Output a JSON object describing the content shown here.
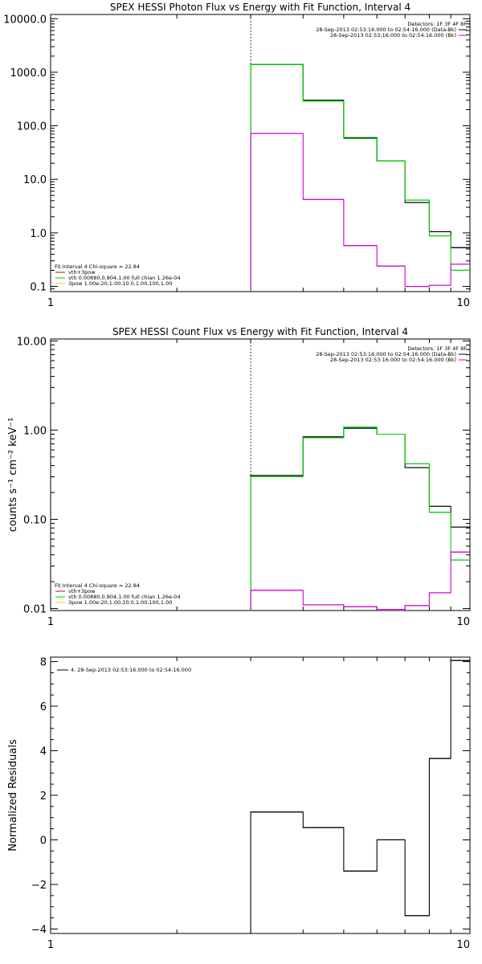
{
  "chart_data": [
    {
      "type": "line",
      "title": "SPEX HESSI Photon Flux vs Energy with Fit Function, Interval 4",
      "xlabel": "",
      "ylabel": "",
      "xscale": "log",
      "yscale": "log",
      "xlim": [
        1,
        10
      ],
      "ylim": [
        0.08,
        12000
      ],
      "x_ticks": [
        {
          "v": 1,
          "label": "1"
        },
        {
          "v": 10,
          "label": "10"
        }
      ],
      "y_ticks": [
        {
          "v": 0.1,
          "label": "0.1"
        },
        {
          "v": 1,
          "label": "1.0"
        },
        {
          "v": 10,
          "label": "10.0"
        },
        {
          "v": 100,
          "label": "100.0"
        },
        {
          "v": 1000,
          "label": "1000.0"
        },
        {
          "v": 10000,
          "label": "10000.0"
        }
      ],
      "vline": 3,
      "bin_edges": [
        3,
        4,
        5,
        6,
        7,
        8,
        9,
        10
      ],
      "series": [
        {
          "color": "#000000",
          "values": [
            1400,
            300,
            60,
            22,
            3.7,
            1.05,
            0.53
          ]
        },
        {
          "color": "#00cc00",
          "values": [
            1400,
            290,
            58,
            22,
            4.1,
            0.88,
            0.2
          ]
        },
        {
          "color": "#cc00cc",
          "values": [
            72,
            4.2,
            0.58,
            0.24,
            0.1,
            0.105,
            0.26
          ]
        }
      ],
      "legend_top_right": [
        {
          "text": "Detectors: 1F 3F 4F 8F",
          "color": "#000000",
          "line": false
        },
        {
          "text": "28-Sep-2013 02:53:16.000 to 02:54:16.000 (Data-Bk)",
          "color": "#000000",
          "line": true
        },
        {
          "text": "28-Sep-2013 02:53:16.000 to 02:54:16.000 (Bk)",
          "color": "#cc00cc",
          "line": true
        }
      ],
      "legend_bottom_left": [
        {
          "text": "Fit Interval  4   Chi-square = 22.84",
          "color": "#000000",
          "line": false
        },
        {
          "text": "vth+3pow",
          "color": "#cc0000",
          "line": true
        },
        {
          "text": "vth 0.00880,0.804,1.00  full chian 1.26e-04",
          "color": "#00cc00",
          "line": true
        },
        {
          "text": "3pow 1.00e-20,1.00,10.0,1.00,100,1.00",
          "color": "#dddd00",
          "line": true
        }
      ]
    },
    {
      "type": "line",
      "title": "SPEX HESSI Count Flux vs Energy with Fit Function, Interval 4",
      "xlabel": "",
      "ylabel": "counts s⁻¹ cm⁻² keV⁻¹",
      "xscale": "log",
      "yscale": "log",
      "xlim": [
        1,
        10
      ],
      "ylim": [
        0.0095,
        10.5
      ],
      "x_ticks": [
        {
          "v": 1,
          "label": "1"
        },
        {
          "v": 10,
          "label": "10"
        }
      ],
      "y_ticks": [
        {
          "v": 0.01,
          "label": "0.01"
        },
        {
          "v": 0.1,
          "label": "0.10"
        },
        {
          "v": 1,
          "label": "1.00"
        },
        {
          "v": 10,
          "label": "10.00"
        }
      ],
      "vline": 3,
      "bin_edges": [
        3,
        4,
        5,
        6,
        7,
        8,
        9,
        10
      ],
      "series": [
        {
          "color": "#000000",
          "values": [
            0.31,
            0.84,
            1.05,
            0.9,
            0.38,
            0.14,
            0.082
          ]
        },
        {
          "color": "#00cc00",
          "values": [
            0.3,
            0.82,
            1.08,
            0.9,
            0.42,
            0.12,
            0.035
          ]
        },
        {
          "color": "#cc00cc",
          "values": [
            0.016,
            0.011,
            0.0105,
            0.0098,
            0.0108,
            0.015,
            0.043
          ]
        }
      ],
      "legend_top_right": [
        {
          "text": "Detectors: 1F 3F 4F 8F",
          "color": "#000000",
          "line": false
        },
        {
          "text": "28-Sep-2013 02:53:16.000 to 02:54:16.000 (Data-Bk)",
          "color": "#000000",
          "line": true
        },
        {
          "text": "28-Sep-2013 02:53:16.000 to 02:54:16.000 (Bk)",
          "color": "#cc00cc",
          "line": true
        }
      ],
      "legend_bottom_left": [
        {
          "text": "Fit Interval  4   Chi-square = 22.84",
          "color": "#000000",
          "line": false
        },
        {
          "text": "vth+3pow",
          "color": "#cc0000",
          "line": true
        },
        {
          "text": "vth 0.00880,0.804,1.00  full chian 1.26e-04",
          "color": "#00cc00",
          "line": true
        },
        {
          "text": "3pow 1.00e-20,1.00,10.0,1.00,100,1.00",
          "color": "#dddd00",
          "line": true
        }
      ]
    },
    {
      "type": "line",
      "title": "",
      "xlabel": "",
      "ylabel": "Normalized Residuals",
      "xscale": "log",
      "yscale": "linear",
      "xlim": [
        1,
        10
      ],
      "ylim": [
        -4.2,
        8.2
      ],
      "x_ticks": [
        {
          "v": 1,
          "label": "1"
        },
        {
          "v": 10,
          "label": "10"
        }
      ],
      "y_ticks": [
        {
          "v": -4,
          "label": "−4"
        },
        {
          "v": -2,
          "label": "−2"
        },
        {
          "v": 0,
          "label": "0"
        },
        {
          "v": 2,
          "label": "2"
        },
        {
          "v": 4,
          "label": "4"
        },
        {
          "v": 6,
          "label": "6"
        },
        {
          "v": 8,
          "label": "8"
        }
      ],
      "bin_edges": [
        3,
        4,
        5,
        6,
        7,
        8,
        9,
        10
      ],
      "series": [
        {
          "color": "#000000",
          "values": [
            1.25,
            0.55,
            -1.4,
            0.0,
            -3.4,
            3.65,
            8.05
          ]
        }
      ],
      "legend_top_left": [
        {
          "text": "4. 28-Sep-2013 02:53:16.000 to 02:54:16.000",
          "color": "#000000",
          "line": true
        }
      ]
    }
  ]
}
